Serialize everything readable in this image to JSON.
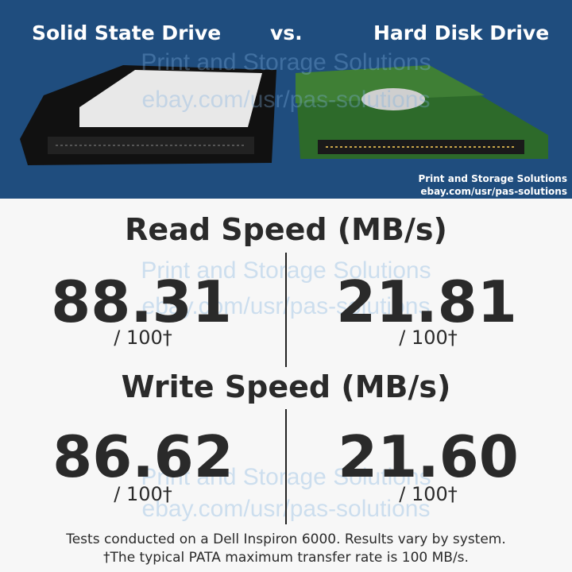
{
  "header": {
    "left_title": "Solid State Drive",
    "vs": "vs.",
    "right_title": "Hard Disk Drive",
    "credit_name": "Print and Storage Solutions",
    "credit_url": "ebay.com/usr/pas-solutions"
  },
  "watermark": {
    "name": "Print and Storage Solutions",
    "url": "ebay.com/usr/pas-solutions"
  },
  "sections": [
    {
      "title": "Read Speed (MB/s)",
      "ssd": "88.31",
      "hdd": "21.81",
      "scale": "/ 100†"
    },
    {
      "title": "Write Speed (MB/s)",
      "ssd": "86.62",
      "hdd": "21.60",
      "scale": "/ 100†"
    }
  ],
  "footnotes": [
    "Tests conducted on a Dell Inspiron 6000. Results vary by system.",
    "†The typical PATA maximum transfer rate is 100 MB/s."
  ]
}
